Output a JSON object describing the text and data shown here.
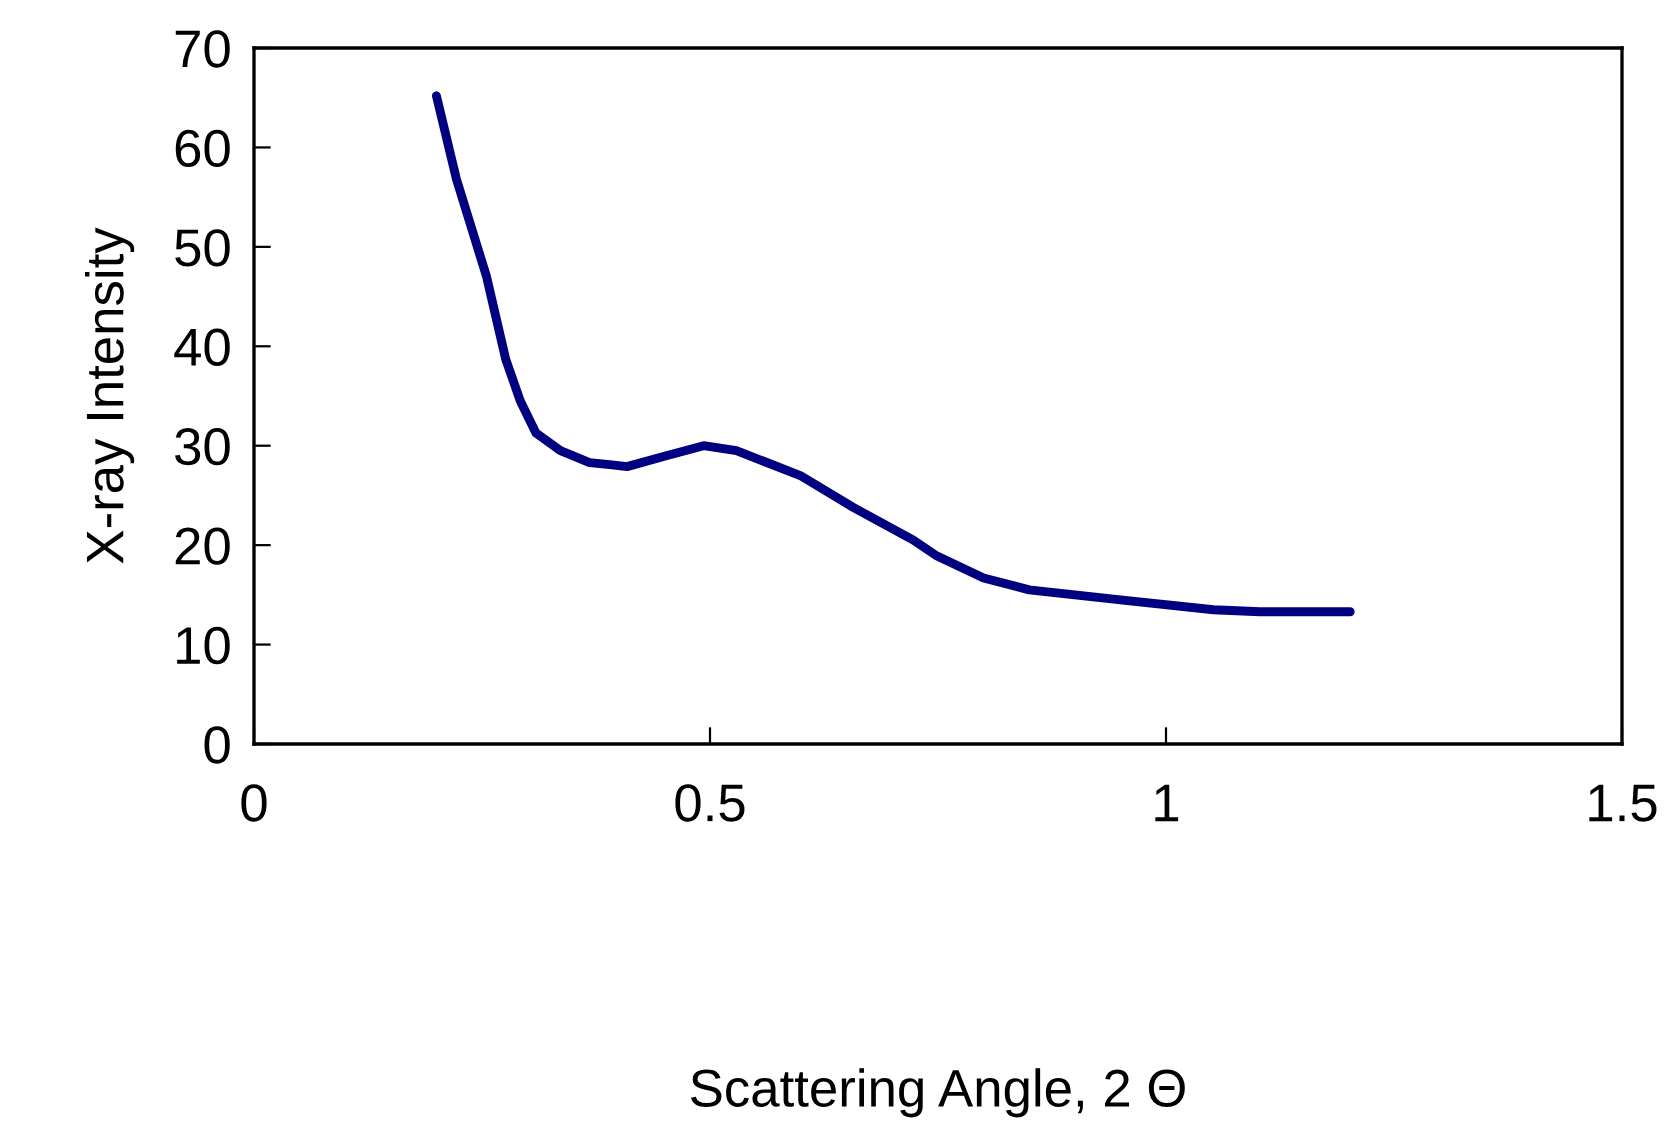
{
  "chart_data": {
    "type": "line",
    "xlabel": "Scattering Angle, 2 Θ",
    "ylabel": "X-ray Intensity",
    "series": [
      {
        "color": "#000080",
        "x": [
          0.2,
          0.222,
          0.255,
          0.276,
          0.292,
          0.309,
          0.336,
          0.368,
          0.39,
          0.409,
          0.452,
          0.493,
          0.529,
          0.599,
          0.657,
          0.723,
          0.749,
          0.8,
          0.85,
          0.95,
          1.052,
          1.103,
          1.202
        ],
        "values": [
          65.2,
          56.8,
          47.0,
          38.7,
          34.5,
          31.3,
          29.5,
          28.3,
          28.1,
          27.9,
          29.0,
          30.0,
          29.5,
          27.0,
          23.8,
          20.5,
          18.9,
          16.7,
          15.5,
          14.5,
          13.5,
          13.3,
          13.3
        ]
      }
    ],
    "xlim": [
      0,
      1.5
    ],
    "xticks": [
      0,
      0.5,
      1,
      1.5
    ],
    "ylim": [
      0,
      70
    ],
    "yticks": [
      0,
      10,
      20,
      30,
      40,
      50,
      60,
      70
    ],
    "grid": false,
    "legend": false,
    "marker": "none",
    "line_style": "solid"
  }
}
